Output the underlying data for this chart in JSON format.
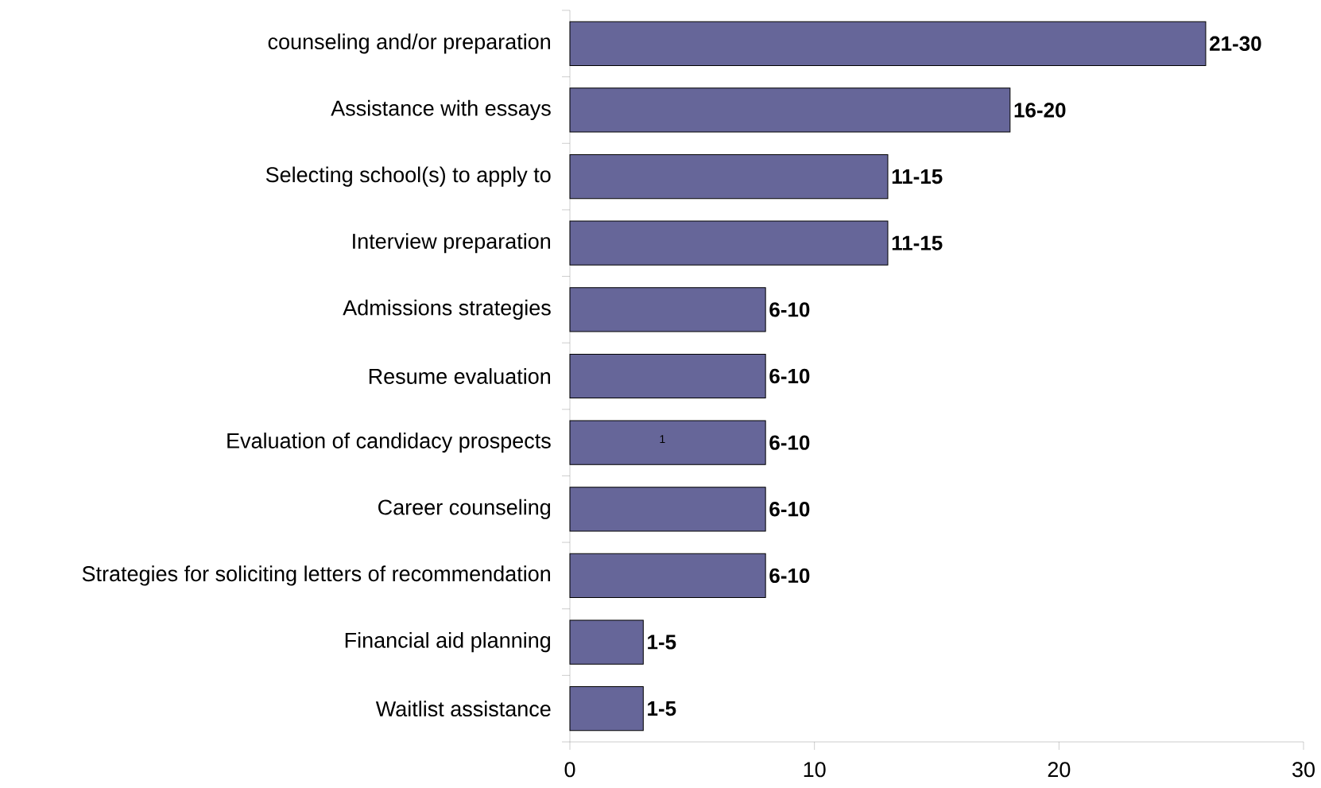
{
  "chart_data": {
    "type": "bar",
    "orientation": "horizontal",
    "categories": [
      "counseling and/or preparation",
      "Assistance with essays",
      "Selecting school(s) to apply to",
      "Interview preparation",
      "Admissions strategies",
      "Resume evaluation",
      "Evaluation of candidacy prospects",
      "Career counseling",
      "Strategies for soliciting letters of recommendation",
      "Financial aid planning",
      "Waitlist assistance"
    ],
    "values": [
      26,
      18,
      13,
      13,
      8,
      8,
      8,
      8,
      8,
      3,
      3
    ],
    "value_labels": [
      "21-30",
      "16-20",
      "11-15",
      "11-15",
      "6-10",
      "6-10",
      "6-10",
      "6-10",
      "6-10",
      "1-5",
      "1-5"
    ],
    "color": "#666699",
    "xlim": [
      0,
      30
    ],
    "xticks": [
      0,
      10,
      20,
      30
    ],
    "grid": false,
    "annotations": [
      "1"
    ]
  }
}
